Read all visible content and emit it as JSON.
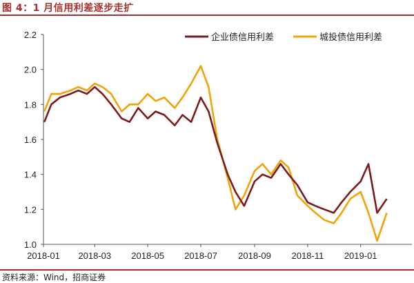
{
  "figure": {
    "title": "图 4：1 月信用利差逐步走扩",
    "source": "资料来源：Wind，招商证券"
  },
  "chart_data": {
    "type": "line",
    "title": "",
    "xlabel": "",
    "ylabel": "",
    "ylim": [
      1.0,
      2.2
    ],
    "yticks": [
      "1.0",
      "1.2",
      "1.4",
      "1.6",
      "1.8",
      "2.0",
      "2.2"
    ],
    "xticks": [
      "2018-01",
      "2018-03",
      "2018-05",
      "2018-07",
      "2018-09",
      "2018-11",
      "2019-01"
    ],
    "x_range_months": [
      "2018-01",
      "2019-02"
    ],
    "grid": false,
    "legend_position": "top-right",
    "series": [
      {
        "name": "企业债信用利差",
        "color": "#7b1a1a",
        "x": [
          "2018-01-02",
          "2018-01-10",
          "2018-01-20",
          "2018-02-01",
          "2018-02-10",
          "2018-02-20",
          "2018-03-01",
          "2018-03-10",
          "2018-03-20",
          "2018-04-01",
          "2018-04-10",
          "2018-04-20",
          "2018-05-01",
          "2018-05-10",
          "2018-05-20",
          "2018-06-01",
          "2018-06-10",
          "2018-06-20",
          "2018-07-01",
          "2018-07-10",
          "2018-07-20",
          "2018-08-01",
          "2018-08-10",
          "2018-08-20",
          "2018-09-01",
          "2018-09-10",
          "2018-09-20",
          "2018-10-01",
          "2018-10-10",
          "2018-10-20",
          "2018-11-01",
          "2018-11-10",
          "2018-11-20",
          "2018-12-01",
          "2018-12-10",
          "2018-12-20",
          "2019-01-01",
          "2019-01-10",
          "2019-01-20",
          "2019-01-31"
        ],
        "values": [
          1.7,
          1.8,
          1.84,
          1.86,
          1.88,
          1.86,
          1.9,
          1.86,
          1.8,
          1.72,
          1.7,
          1.78,
          1.72,
          1.76,
          1.74,
          1.68,
          1.74,
          1.7,
          1.84,
          1.76,
          1.58,
          1.4,
          1.3,
          1.22,
          1.36,
          1.4,
          1.38,
          1.46,
          1.4,
          1.34,
          1.24,
          1.22,
          1.2,
          1.18,
          1.24,
          1.3,
          1.36,
          1.46,
          1.18,
          1.26
        ]
      },
      {
        "name": "城投债信用利差",
        "color": "#f0a30a",
        "x": [
          "2018-01-02",
          "2018-01-10",
          "2018-01-20",
          "2018-02-01",
          "2018-02-10",
          "2018-02-20",
          "2018-03-01",
          "2018-03-10",
          "2018-03-20",
          "2018-04-01",
          "2018-04-10",
          "2018-04-20",
          "2018-05-01",
          "2018-05-10",
          "2018-05-20",
          "2018-06-01",
          "2018-06-10",
          "2018-06-20",
          "2018-07-01",
          "2018-07-10",
          "2018-07-20",
          "2018-08-01",
          "2018-08-10",
          "2018-08-20",
          "2018-09-01",
          "2018-09-10",
          "2018-09-20",
          "2018-10-01",
          "2018-10-10",
          "2018-10-20",
          "2018-11-01",
          "2018-11-10",
          "2018-11-20",
          "2018-12-01",
          "2018-12-10",
          "2018-12-20",
          "2019-01-01",
          "2019-01-10",
          "2019-01-20",
          "2019-01-31"
        ],
        "values": [
          1.76,
          1.86,
          1.86,
          1.88,
          1.9,
          1.88,
          1.92,
          1.9,
          1.86,
          1.76,
          1.8,
          1.8,
          1.86,
          1.82,
          1.84,
          1.78,
          1.84,
          1.92,
          2.02,
          1.9,
          1.6,
          1.38,
          1.2,
          1.28,
          1.42,
          1.46,
          1.4,
          1.48,
          1.44,
          1.28,
          1.22,
          1.18,
          1.14,
          1.12,
          1.18,
          1.26,
          1.3,
          1.18,
          1.02,
          1.18
        ]
      }
    ]
  }
}
